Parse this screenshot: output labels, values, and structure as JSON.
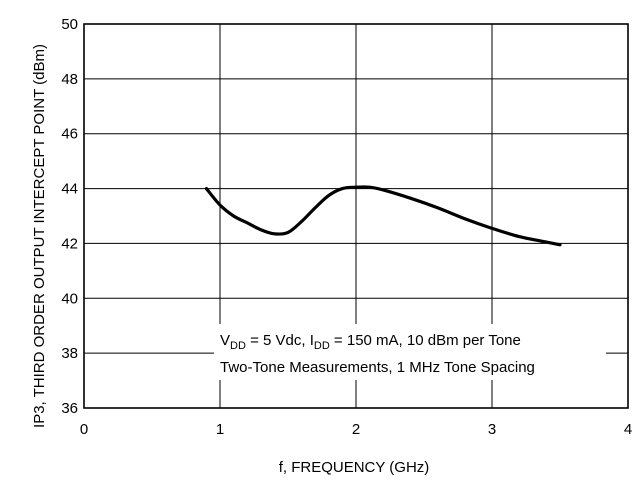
{
  "chart_data": {
    "type": "line",
    "xlabel": "f, FREQUENCY (GHz)",
    "ylabel": "IP3, THIRD ORDER OUTPUT INTERCEPT POINT (dBm)",
    "xlim": [
      0,
      4
    ],
    "ylim": [
      36,
      50
    ],
    "xticks": [
      "0",
      "1",
      "2",
      "3",
      "4"
    ],
    "yticks": [
      "36",
      "38",
      "40",
      "42",
      "44",
      "46",
      "48",
      "50"
    ],
    "grid": true,
    "series": [
      {
        "x": [
          0.9,
          1.0,
          1.1,
          1.2,
          1.3,
          1.4,
          1.5,
          1.6,
          1.7,
          1.8,
          1.9,
          2.0,
          2.1,
          2.2,
          2.4,
          2.6,
          2.8,
          3.0,
          3.2,
          3.4,
          3.5
        ],
        "values": [
          44.0,
          43.4,
          43.0,
          42.75,
          42.5,
          42.35,
          42.4,
          42.8,
          43.3,
          43.75,
          44.0,
          44.05,
          44.05,
          43.95,
          43.65,
          43.3,
          42.9,
          42.55,
          42.25,
          42.05,
          41.95
        ]
      }
    ],
    "annotation": {
      "line1_v": "V",
      "line1_v_sub": "DD",
      "line1_mid": " = 5 Vdc, I",
      "line1_i_sub": "DD",
      "line1_end": " = 150 mA, 10 dBm per Tone",
      "line2": "Two-Tone Measurements, 1 MHz Tone Spacing"
    }
  }
}
